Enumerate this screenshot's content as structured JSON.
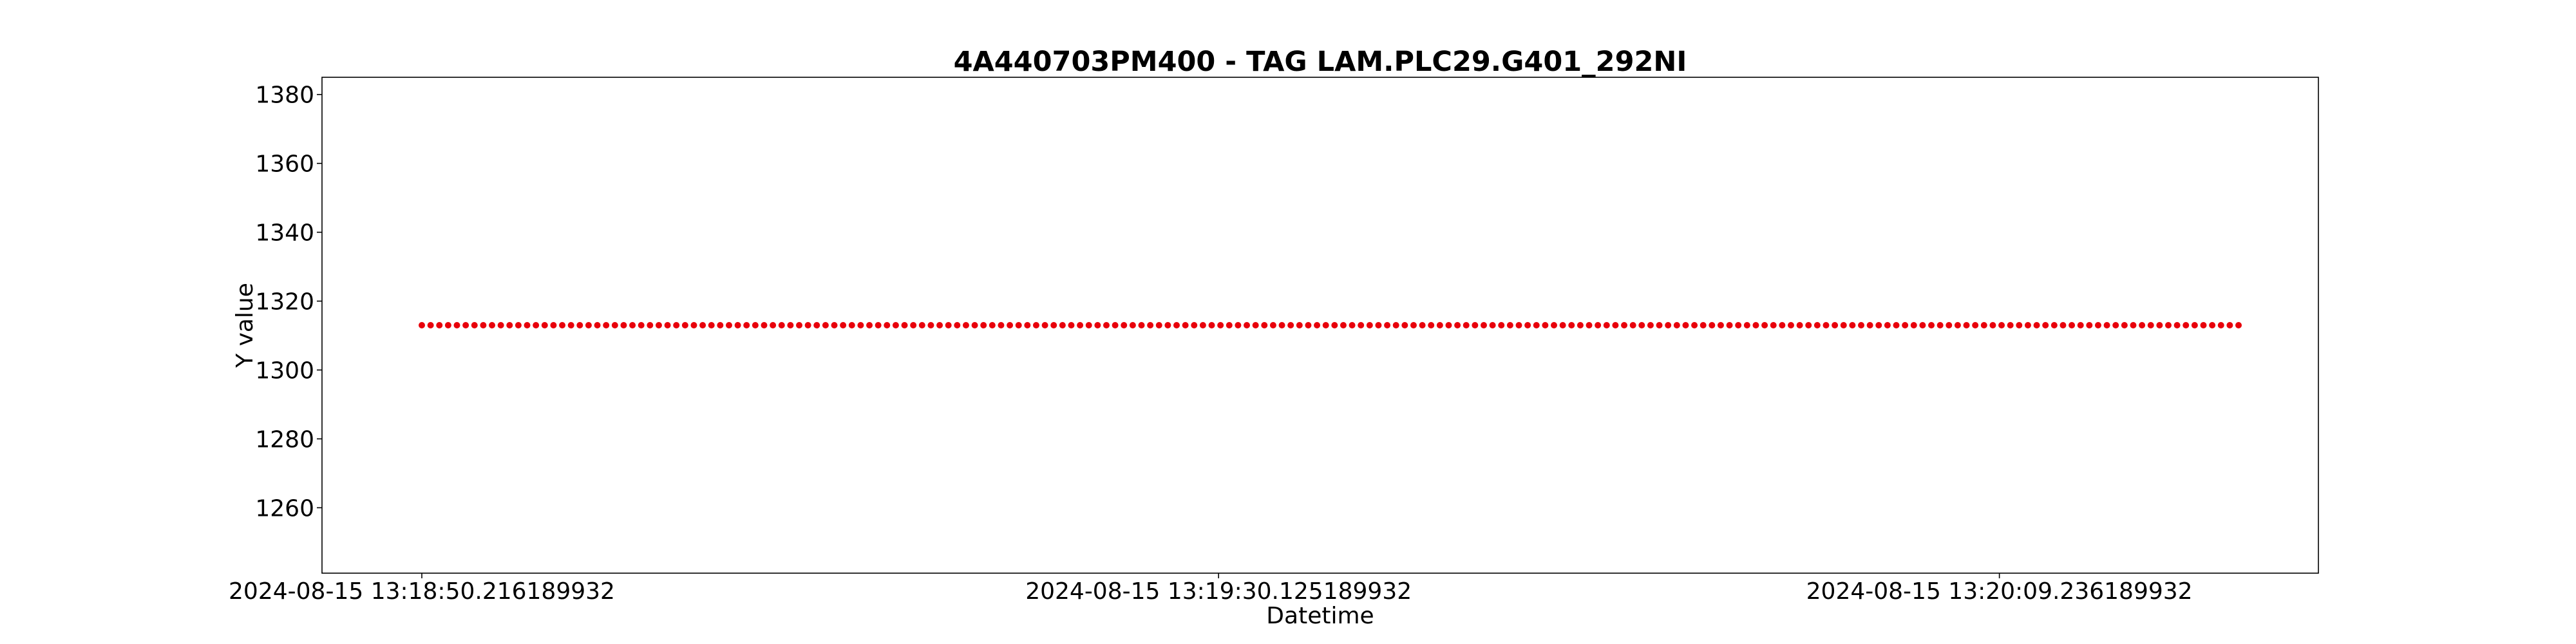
{
  "chart_data": {
    "type": "scatter",
    "title": "4A440703PM400 - TAG LAM.PLC29.G401_292NI",
    "xlabel": "Datetime",
    "ylabel": "Y value",
    "x_ticks": [
      {
        "label": "2024-08-15 13:18:50.216189932",
        "seconds": 0
      },
      {
        "label": "2024-08-15 13:19:30.125189932",
        "seconds": 39.909
      },
      {
        "label": "2024-08-15 13:20:09.236189932",
        "seconds": 79.02
      }
    ],
    "x_range_seconds": [
      -5.0,
      95.0
    ],
    "ylim": [
      1241,
      1385
    ],
    "y_ticks": [
      1260,
      1280,
      1300,
      1320,
      1340,
      1360,
      1380
    ],
    "grid": false,
    "series": [
      {
        "color": "#e8000b",
        "point_count": 208,
        "x_start_seconds": 0,
        "x_end_seconds": 91.0,
        "y_value": 1313
      }
    ]
  }
}
